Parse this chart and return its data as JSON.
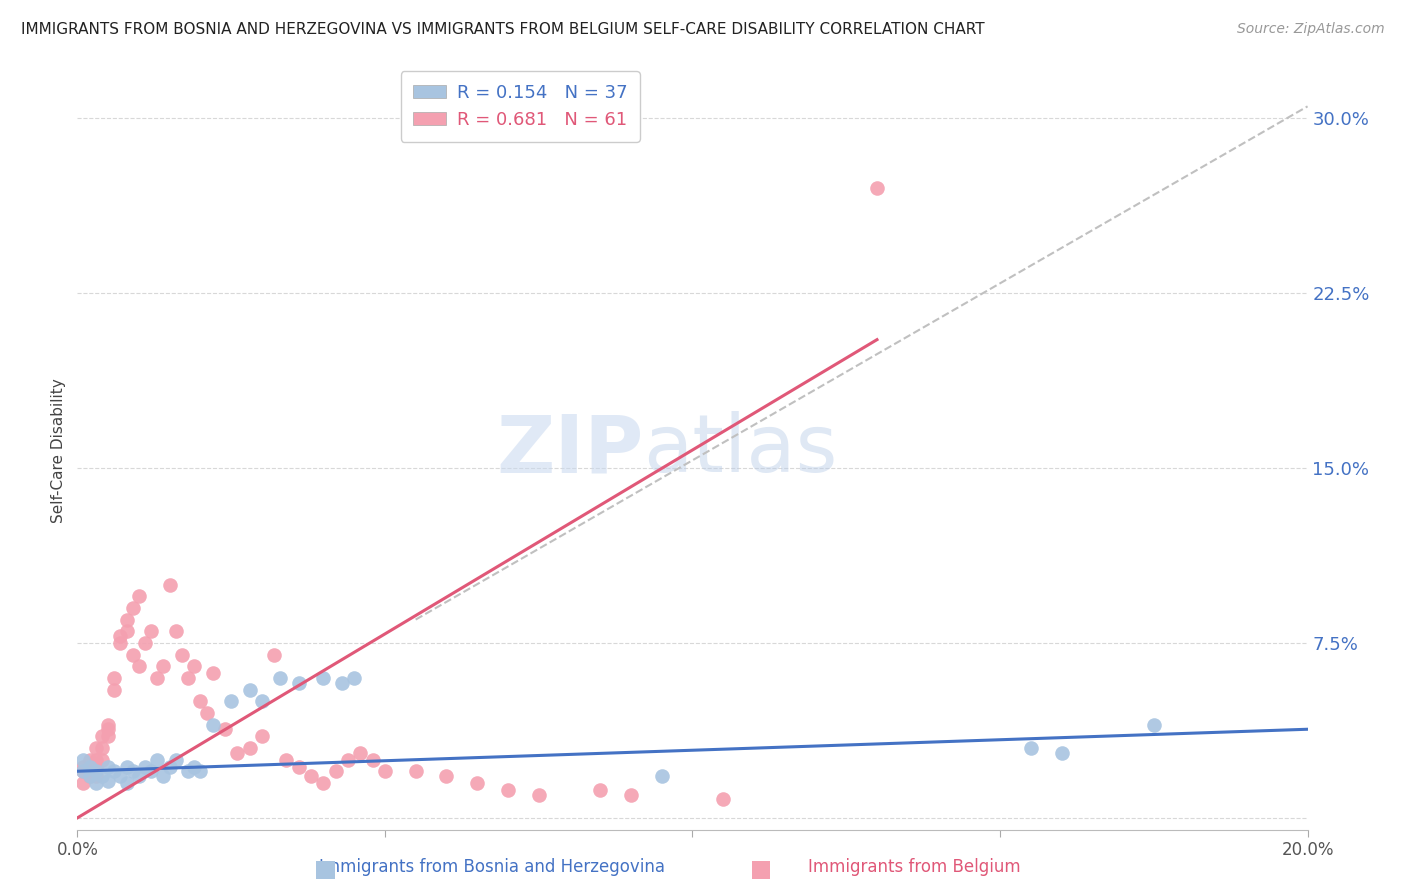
{
  "title": "IMMIGRANTS FROM BOSNIA AND HERZEGOVINA VS IMMIGRANTS FROM BELGIUM SELF-CARE DISABILITY CORRELATION CHART",
  "source": "Source: ZipAtlas.com",
  "ylabel": "Self-Care Disability",
  "xlabel_blue": "Immigrants from Bosnia and Herzegovina",
  "xlabel_pink": "Immigrants from Belgium",
  "r_blue": 0.154,
  "n_blue": 37,
  "r_pink": 0.681,
  "n_pink": 61,
  "xlim": [
    0.0,
    0.2
  ],
  "ylim": [
    -0.005,
    0.32
  ],
  "yticks": [
    0.0,
    0.075,
    0.15,
    0.225,
    0.3
  ],
  "ytick_labels": [
    "",
    "7.5%",
    "15.0%",
    "22.5%",
    "30.0%"
  ],
  "xticks": [
    0.0,
    0.05,
    0.1,
    0.15,
    0.2
  ],
  "xtick_labels": [
    "0.0%",
    "",
    "",
    "",
    "20.0%"
  ],
  "color_blue": "#a8c4e0",
  "color_pink": "#f4a0b0",
  "line_color_blue": "#4472c4",
  "line_color_pink": "#e05878",
  "line_color_dashed": "#c0c0c0",
  "watermark_zip": "ZIP",
  "watermark_atlas": "atlas",
  "blue_line_x0": 0.0,
  "blue_line_y0": 0.02,
  "blue_line_x1": 0.2,
  "blue_line_y1": 0.038,
  "pink_line_x0": 0.0,
  "pink_line_y0": 0.0,
  "pink_line_x1": 0.13,
  "pink_line_y1": 0.205,
  "dashed_line_x0": 0.055,
  "dashed_line_y0": 0.085,
  "dashed_line_x1": 0.2,
  "dashed_line_y1": 0.305,
  "blue_points_x": [
    0.001,
    0.001,
    0.002,
    0.002,
    0.003,
    0.003,
    0.004,
    0.005,
    0.005,
    0.006,
    0.007,
    0.008,
    0.008,
    0.009,
    0.01,
    0.011,
    0.012,
    0.013,
    0.014,
    0.015,
    0.016,
    0.018,
    0.019,
    0.02,
    0.022,
    0.025,
    0.028,
    0.03,
    0.033,
    0.036,
    0.04,
    0.043,
    0.045,
    0.095,
    0.155,
    0.16,
    0.175
  ],
  "blue_points_y": [
    0.02,
    0.025,
    0.018,
    0.022,
    0.015,
    0.02,
    0.018,
    0.022,
    0.016,
    0.02,
    0.018,
    0.022,
    0.015,
    0.02,
    0.018,
    0.022,
    0.02,
    0.025,
    0.018,
    0.022,
    0.025,
    0.02,
    0.022,
    0.02,
    0.04,
    0.05,
    0.055,
    0.05,
    0.06,
    0.058,
    0.06,
    0.058,
    0.06,
    0.018,
    0.03,
    0.028,
    0.04
  ],
  "pink_points_x": [
    0.001,
    0.001,
    0.001,
    0.002,
    0.002,
    0.002,
    0.003,
    0.003,
    0.003,
    0.003,
    0.004,
    0.004,
    0.004,
    0.005,
    0.005,
    0.005,
    0.006,
    0.006,
    0.007,
    0.007,
    0.008,
    0.008,
    0.009,
    0.009,
    0.01,
    0.01,
    0.011,
    0.012,
    0.013,
    0.014,
    0.015,
    0.016,
    0.017,
    0.018,
    0.019,
    0.02,
    0.021,
    0.022,
    0.024,
    0.026,
    0.028,
    0.03,
    0.032,
    0.034,
    0.036,
    0.038,
    0.04,
    0.042,
    0.044,
    0.046,
    0.048,
    0.05,
    0.055,
    0.06,
    0.065,
    0.07,
    0.075,
    0.085,
    0.09,
    0.105,
    0.13
  ],
  "pink_points_y": [
    0.02,
    0.022,
    0.015,
    0.025,
    0.02,
    0.018,
    0.03,
    0.025,
    0.022,
    0.018,
    0.025,
    0.035,
    0.03,
    0.04,
    0.035,
    0.038,
    0.06,
    0.055,
    0.075,
    0.078,
    0.08,
    0.085,
    0.09,
    0.07,
    0.095,
    0.065,
    0.075,
    0.08,
    0.06,
    0.065,
    0.1,
    0.08,
    0.07,
    0.06,
    0.065,
    0.05,
    0.045,
    0.062,
    0.038,
    0.028,
    0.03,
    0.035,
    0.07,
    0.025,
    0.022,
    0.018,
    0.015,
    0.02,
    0.025,
    0.028,
    0.025,
    0.02,
    0.02,
    0.018,
    0.015,
    0.012,
    0.01,
    0.012,
    0.01,
    0.008,
    0.27
  ]
}
